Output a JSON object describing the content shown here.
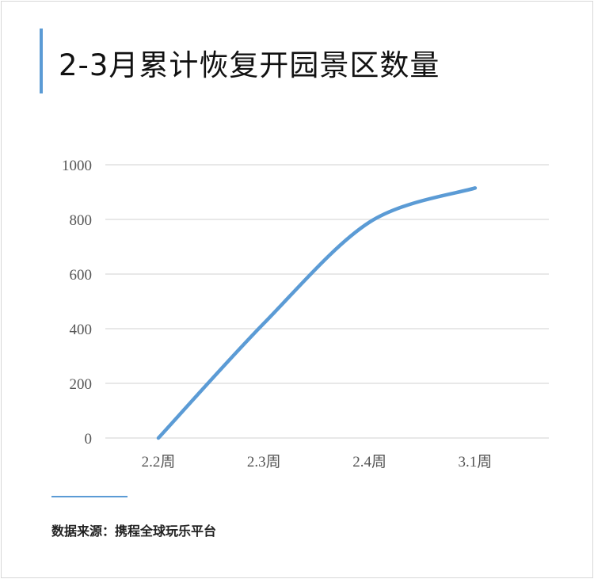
{
  "title": "2-3月累计恢复开园景区数量",
  "source": "数据来源：携程全球玩乐平台",
  "colors": {
    "line": "#5b9bd5",
    "grid": "#d9d9d9",
    "accent": "#5b9bd5"
  },
  "chart_data": {
    "type": "line",
    "title": "2-3月累计恢复开园景区数量",
    "categories": [
      "2.2周",
      "2.3周",
      "2.4周",
      "3.1周"
    ],
    "series": [
      {
        "values": [
          0,
          420,
          790,
          915
        ]
      }
    ],
    "yticks": [
      0,
      200,
      400,
      600,
      800,
      1000
    ],
    "ylim": [
      0,
      1000
    ],
    "grid": true,
    "smooth": true,
    "legend": "none"
  }
}
